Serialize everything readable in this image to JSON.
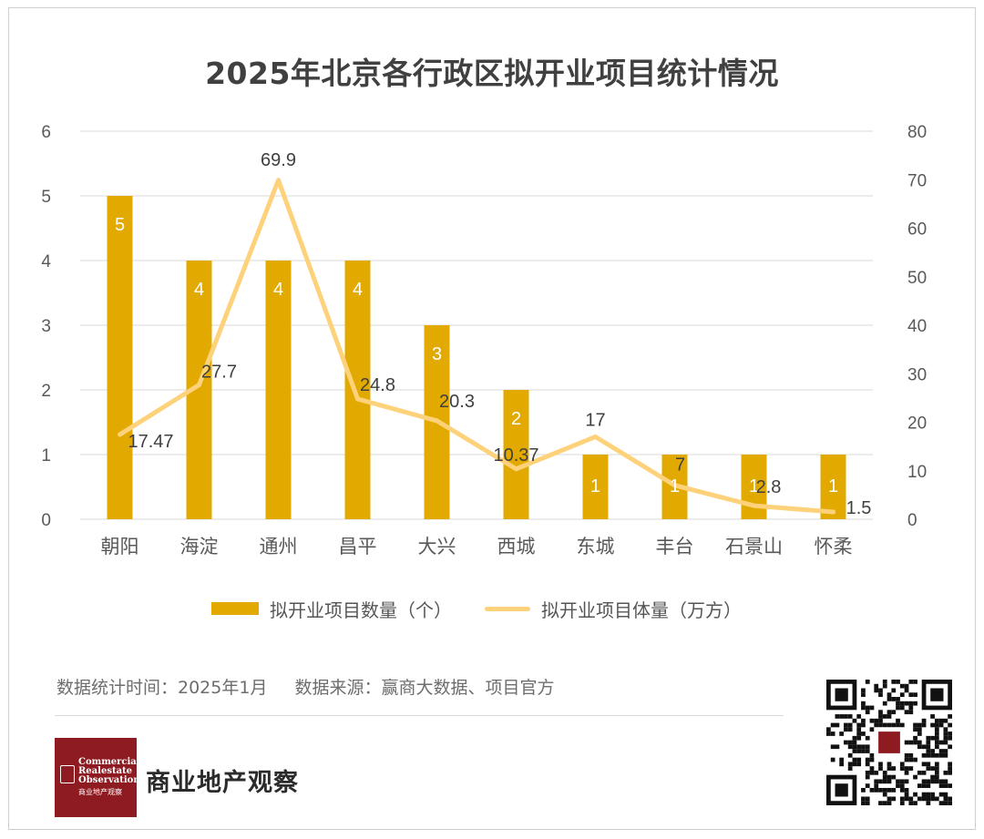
{
  "title": "2025年北京各行政区拟开业项目统计情况",
  "chart_data": {
    "type": "bar",
    "categories": [
      "朝阳",
      "海淀",
      "通州",
      "昌平",
      "大兴",
      "西城",
      "东城",
      "丰台",
      "石景山",
      "怀柔"
    ],
    "series": [
      {
        "name": "拟开业项目数量（个）",
        "type": "bar",
        "axis": "left",
        "values": [
          5,
          4,
          4,
          4,
          3,
          2,
          1,
          1,
          1,
          1
        ],
        "labels": [
          "5",
          "4",
          "4",
          "4",
          "3",
          "2",
          "1",
          "1",
          "1",
          "1"
        ]
      },
      {
        "name": "拟开业项目体量（万方）",
        "type": "line",
        "axis": "right",
        "values": [
          17.47,
          27.7,
          69.9,
          24.8,
          20.3,
          10.37,
          17,
          7,
          2.8,
          1.5
        ],
        "labels": [
          "17.47",
          "27.7",
          "69.9",
          "24.8",
          "20.3",
          "10.37",
          "17",
          "7",
          "2.8",
          "1.5"
        ]
      }
    ],
    "y_left": {
      "ylim": [
        0,
        6
      ],
      "ticks": [
        "0",
        "1",
        "2",
        "3",
        "4",
        "5",
        "6"
      ]
    },
    "y_right": {
      "ylim": [
        0,
        80
      ],
      "ticks": [
        "0",
        "10",
        "20",
        "30",
        "40",
        "50",
        "60",
        "70",
        "80"
      ]
    },
    "grid": true,
    "legend_position": "bottom",
    "colors": {
      "bar": "#E2AA00",
      "line": "#FDD27A",
      "bar_label": "#ffffff",
      "line_label": "#404040",
      "grid": "#d9d9d9"
    }
  },
  "legend": {
    "bar": "拟开业项目数量（个）",
    "line": "拟开业项目体量（万方）"
  },
  "footer": {
    "time": "数据统计时间：2025年1月",
    "source": "数据来源：赢商大数据、项目官方",
    "brand": "商业地产观察",
    "logo_text": [
      "Commercial",
      "Realestate",
      "Observation",
      "商业地产观察"
    ]
  }
}
